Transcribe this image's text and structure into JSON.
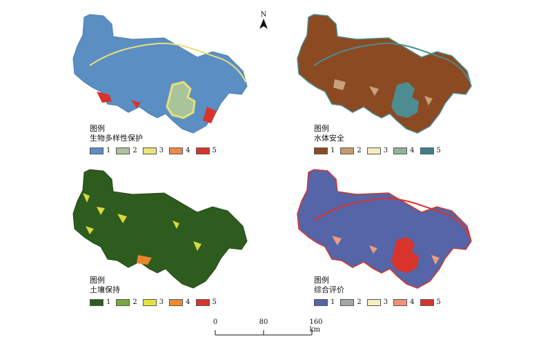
{
  "north_arrow": {
    "label": "N"
  },
  "scale_bar": {
    "ticks": [
      "0",
      "80",
      "160 km"
    ]
  },
  "panels": [
    {
      "id": "biodiversity",
      "legend_label": "图例",
      "legend_title": "生物多样性保护",
      "colors": {
        "base": "#5b8fc4",
        "water": "#a9c49a",
        "accent1": "#d8342c",
        "accent2": "#e8e07a"
      },
      "classes": [
        {
          "label": "1",
          "color": "#5b8fc4"
        },
        {
          "label": "2",
          "color": "#a9c49a"
        },
        {
          "label": "3",
          "color": "#e9e37c"
        },
        {
          "label": "4",
          "color": "#f0894a"
        },
        {
          "label": "5",
          "color": "#d8342c"
        }
      ]
    },
    {
      "id": "water-security",
      "legend_label": "图例",
      "legend_title": "水体安全",
      "colors": {
        "base": "#8b4a22",
        "water": "#4d8d92",
        "accent1": "#c9a27a",
        "accent2": "#4d8d92"
      },
      "classes": [
        {
          "label": "1",
          "color": "#8b4a22"
        },
        {
          "label": "2",
          "color": "#c89a6e"
        },
        {
          "label": "3",
          "color": "#f6eec0"
        },
        {
          "label": "4",
          "color": "#8fb59b"
        },
        {
          "label": "5",
          "color": "#3f7f86"
        }
      ]
    },
    {
      "id": "soil-conservation",
      "legend_label": "图例",
      "legend_title": "土壤保持",
      "colors": {
        "base": "#2d5c1e",
        "water": "#2d5c1e",
        "accent1": "#d8d840",
        "accent2": "#e8862e"
      },
      "classes": [
        {
          "label": "1",
          "color": "#2d5c1e"
        },
        {
          "label": "2",
          "color": "#7aa83a"
        },
        {
          "label": "3",
          "color": "#e4e33e"
        },
        {
          "label": "4",
          "color": "#ee8a32"
        },
        {
          "label": "5",
          "color": "#d8342c"
        }
      ]
    },
    {
      "id": "comprehensive",
      "legend_label": "图例",
      "legend_title": "综合评价",
      "colors": {
        "base": "#5565a8",
        "water": "#d8342c",
        "accent1": "#d8342c",
        "accent2": "#f09c7e"
      },
      "classes": [
        {
          "label": "1",
          "color": "#5565a8"
        },
        {
          "label": "2",
          "color": "#a3a8a6"
        },
        {
          "label": "3",
          "color": "#f4efc0"
        },
        {
          "label": "4",
          "color": "#f09276"
        },
        {
          "label": "5",
          "color": "#d8342c"
        }
      ]
    }
  ]
}
